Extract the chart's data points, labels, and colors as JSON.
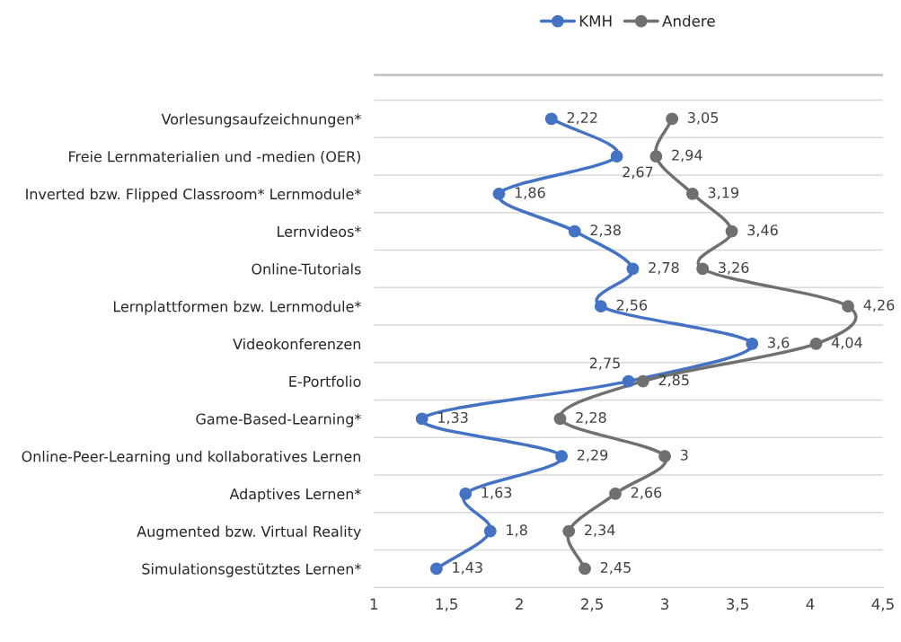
{
  "chart_data": {
    "type": "line",
    "orientation": "horizontal",
    "categories": [
      "Vorlesungsaufzeichnungen*",
      "Freie Lernmaterialien und -medien (OER)",
      "Inverted bzw. Flipped Classroom* Lernmodule*",
      "Lernvideos*",
      "Online-Tutorials",
      "Lernplattformen bzw. Lernmodule*",
      "Videokonferenzen",
      "E-Portfolio",
      "Game-Based-Learning*",
      "Online-Peer-Learning und kollaboratives Lernen",
      "Adaptives Lernen*",
      "Augmented bzw. Virtual Reality",
      "Simulationsgestütztes Lernen*"
    ],
    "series": [
      {
        "name": "KMH",
        "color": "#4472c4",
        "values": [
          2.22,
          2.67,
          1.86,
          2.38,
          2.78,
          2.56,
          3.6,
          2.75,
          1.33,
          2.29,
          1.63,
          1.8,
          1.43
        ],
        "value_labels": [
          "2,22",
          "2,67",
          "1,86",
          "2,38",
          "2,78",
          "2,56",
          "3,6",
          "2,75",
          "1,33",
          "2,29",
          "1,63",
          "1,8",
          "1,43"
        ]
      },
      {
        "name": "Andere",
        "color": "#707070",
        "values": [
          3.05,
          2.94,
          3.19,
          3.46,
          3.26,
          4.26,
          4.04,
          2.85,
          2.28,
          3,
          2.66,
          2.34,
          2.45
        ],
        "value_labels": [
          "3,05",
          "2,94",
          "3,19",
          "3,46",
          "3,26",
          "4,26",
          "4,04",
          "2,85",
          "2,28",
          "3",
          "2,66",
          "2,34",
          "2,45"
        ]
      }
    ],
    "xlim": [
      1,
      4.5
    ],
    "xticks": [
      1,
      {
        "value": 1.5,
        "label": "1,5"
      },
      2,
      {
        "value": 2.5,
        "label": "2,5"
      },
      3,
      {
        "value": 3.5,
        "label": "3,5"
      },
      4,
      {
        "value": 4.5,
        "label": "4,5"
      }
    ],
    "grid": "y",
    "legend": "top",
    "marker": "circle"
  }
}
